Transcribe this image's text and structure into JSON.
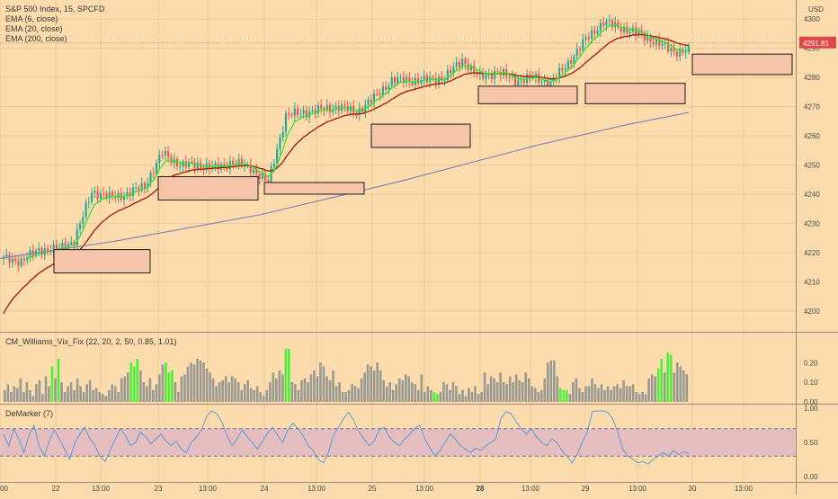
{
  "chart_data": [
    {
      "type": "candlestick",
      "title": "S&P 500 Index, 15, SPCFD",
      "currency": "USD",
      "last_price_label": "4291.81",
      "ylim": [
        4195,
        4305
      ],
      "y_ticks": [
        4200,
        4210,
        4220,
        4230,
        4240,
        4250,
        4260,
        4270,
        4280,
        4290,
        4300
      ],
      "x_labels": [
        "00",
        "22",
        "13:00",
        "23",
        "13:00",
        "24",
        "13:00",
        "25",
        "13:00",
        "28",
        "13:00",
        "29",
        "13:00",
        "30",
        "13:00"
      ],
      "bold_x_labels": [
        "28"
      ],
      "indicators": [
        "EMA (6, close)",
        "EMA (20, close)",
        "EMA (200, close)"
      ],
      "colors": {
        "up": "#26a69a",
        "down": "#ef5350",
        "ema6": "#2ee62e",
        "ema20": "#a2240e",
        "ema200": "#8a82b4",
        "box_fill": "#f6c4a6",
        "box_border": "#1a1a1a"
      },
      "anchors": [
        4218,
        4217,
        4221,
        4221,
        4224,
        4241,
        4239,
        4240,
        4243,
        4254,
        4250,
        4250,
        4249,
        4251,
        4249,
        4244,
        4267,
        4268,
        4269,
        4270,
        4268,
        4273,
        4279,
        4279,
        4279,
        4280,
        4286,
        4280,
        4282,
        4279,
        4280,
        4278,
        4285,
        4293,
        4299,
        4297,
        4295,
        4292,
        4289,
        4289
      ],
      "candles_per_anchor": 6,
      "ema200_points": [
        [
          0,
          4218
        ],
        [
          130,
          4224
        ],
        [
          290,
          4233
        ],
        [
          440,
          4244
        ],
        [
          600,
          4257
        ],
        [
          700,
          4264
        ],
        [
          766,
          4268
        ]
      ],
      "support_zones": [
        {
          "x_start": 60,
          "x_end": 167,
          "y_top": 4221,
          "y_bottom": 4213
        },
        {
          "x_start": 176,
          "x_end": 287,
          "y_top": 4246,
          "y_bottom": 4238
        },
        {
          "x_start": 294,
          "x_end": 405,
          "y_top": 4244,
          "y_bottom": 4240
        },
        {
          "x_start": 413,
          "x_end": 523,
          "y_top": 4264,
          "y_bottom": 4256
        },
        {
          "x_start": 532,
          "x_end": 642,
          "y_top": 4277,
          "y_bottom": 4271
        },
        {
          "x_start": 651,
          "x_end": 762,
          "y_top": 4278,
          "y_bottom": 4271
        },
        {
          "x_start": 770,
          "x_end": 881,
          "y_top": 4288,
          "y_bottom": 4281
        }
      ]
    },
    {
      "type": "bar",
      "title": "CM_Williams_Vix_Fix (22, 20, 2, 50, 0.85, 1.01)",
      "ylim": [
        0,
        0.27
      ],
      "y_ticks": [
        0.0,
        0.1,
        0.2
      ],
      "y_tick_labels": [
        "0.00",
        "0.10",
        "0.20"
      ],
      "colors": {
        "normal": "#9a9a94",
        "highlight": "#4ef03c"
      },
      "values": [
        0.06,
        0.09,
        0.05,
        0.08,
        0.07,
        0.12,
        0.05,
        0.1,
        0.06,
        0.03,
        0.09,
        0.11,
        0.04,
        0.13,
        0.08,
        0.18,
        0.12,
        0.22,
        0.1,
        0.05,
        0.08,
        0.1,
        0.06,
        0.12,
        0.08,
        0.05,
        0.09,
        0.11,
        0.06,
        0.07,
        0.05,
        0.04,
        0.03,
        0.06,
        0.09,
        0.08,
        0.05,
        0.12,
        0.13,
        0.15,
        0.2,
        0.18,
        0.22,
        0.16,
        0.1,
        0.08,
        0.12,
        0.06,
        0.09,
        0.14,
        0.19,
        0.2,
        0.15,
        0.16,
        0.1,
        0.05,
        0.13,
        0.14,
        0.18,
        0.2,
        0.19,
        0.22,
        0.21,
        0.2,
        0.17,
        0.15,
        0.12,
        0.08,
        0.1,
        0.11,
        0.13,
        0.1,
        0.13,
        0.12,
        0.1,
        0.06,
        0.09,
        0.11,
        0.07,
        0.06,
        0.08,
        0.05,
        0.03,
        0.06,
        0.1,
        0.15,
        0.12,
        0.16,
        0.14,
        0.27,
        0.27,
        0.1,
        0.09,
        0.06,
        0.11,
        0.12,
        0.1,
        0.14,
        0.16,
        0.13,
        0.2,
        0.18,
        0.13,
        0.11,
        0.16,
        0.08,
        0.1,
        0.05,
        0.05,
        0.06,
        0.09,
        0.08,
        0.07,
        0.12,
        0.15,
        0.19,
        0.18,
        0.16,
        0.2,
        0.16,
        0.11,
        0.08,
        0.1,
        0.06,
        0.09,
        0.12,
        0.11,
        0.14,
        0.13,
        0.1,
        0.09,
        0.06,
        0.14,
        0.05,
        0.08,
        0.06,
        0.05,
        0.04,
        0.05,
        0.1,
        0.09,
        0.06,
        0.1,
        0.08,
        0.04,
        0.06,
        0.03,
        0.07,
        0.05,
        0.08,
        0.04,
        0.05,
        0.15,
        0.09,
        0.13,
        0.12,
        0.1,
        0.15,
        0.1,
        0.09,
        0.13,
        0.1,
        0.14,
        0.11,
        0.1,
        0.15,
        0.12,
        0.08,
        0.07,
        0.05,
        0.06,
        0.12,
        0.2,
        0.21,
        0.21,
        0.13,
        0.07,
        0.06,
        0.06,
        0.04,
        0.1,
        0.12,
        0.07,
        0.05,
        0.08,
        0.08,
        0.12,
        0.09,
        0.07,
        0.09,
        0.06,
        0.08,
        0.06,
        0.08,
        0.09,
        0.07,
        0.11,
        0.08,
        0.08,
        0.09,
        0.05,
        0.04,
        0.05,
        0.04,
        0.12,
        0.14,
        0.13,
        0.17,
        0.22,
        0.15,
        0.25,
        0.24,
        0.15,
        0.2,
        0.18,
        0.16,
        0.14
      ],
      "highlight_indices": [
        15,
        17,
        40,
        41,
        42,
        51,
        52,
        53,
        89,
        90,
        136,
        137,
        176,
        177,
        178,
        207,
        208,
        210,
        211
      ]
    },
    {
      "type": "line",
      "title": "DeMarker (7)",
      "ylim": [
        0,
        1
      ],
      "y_ticks": [
        0.0,
        0.5,
        1.0
      ],
      "y_tick_labels": [
        "0.00",
        "0.50",
        "1.00"
      ],
      "band": [
        0.3,
        0.7
      ],
      "colors": {
        "line": "#5b9bd8",
        "band": "#e6bec0",
        "dashed": "#6b6b9a"
      },
      "values": [
        0.62,
        0.45,
        0.7,
        0.55,
        0.35,
        0.6,
        0.75,
        0.45,
        0.3,
        0.52,
        0.68,
        0.55,
        0.4,
        0.25,
        0.48,
        0.62,
        0.72,
        0.55,
        0.45,
        0.3,
        0.22,
        0.38,
        0.55,
        0.7,
        0.6,
        0.45,
        0.5,
        0.65,
        0.58,
        0.48,
        0.55,
        0.62,
        0.52,
        0.45,
        0.52,
        0.4,
        0.35,
        0.5,
        0.58,
        0.68,
        0.88,
        0.96,
        0.92,
        0.8,
        0.6,
        0.45,
        0.55,
        0.68,
        0.58,
        0.5,
        0.4,
        0.52,
        0.63,
        0.72,
        0.6,
        0.5,
        0.68,
        0.78,
        0.7,
        0.6,
        0.45,
        0.38,
        0.25,
        0.2,
        0.35,
        0.6,
        0.72,
        0.85,
        0.94,
        0.82,
        0.65,
        0.55,
        0.45,
        0.52,
        0.68,
        0.72,
        0.58,
        0.5,
        0.45,
        0.55,
        0.62,
        0.7,
        0.75,
        0.55,
        0.42,
        0.3,
        0.38,
        0.5,
        0.62,
        0.55,
        0.45,
        0.4,
        0.35,
        0.42,
        0.38,
        0.45,
        0.5,
        0.55,
        0.85,
        0.95,
        0.92,
        0.8,
        0.7,
        0.62,
        0.7,
        0.58,
        0.5,
        0.45,
        0.55,
        0.5,
        0.38,
        0.3,
        0.2,
        0.32,
        0.5,
        0.65,
        0.95,
        0.96,
        0.96,
        0.94,
        0.85,
        0.65,
        0.4,
        0.3,
        0.25,
        0.2,
        0.22,
        0.18,
        0.25,
        0.3,
        0.35,
        0.3,
        0.38,
        0.32,
        0.36,
        0.34
      ]
    }
  ]
}
